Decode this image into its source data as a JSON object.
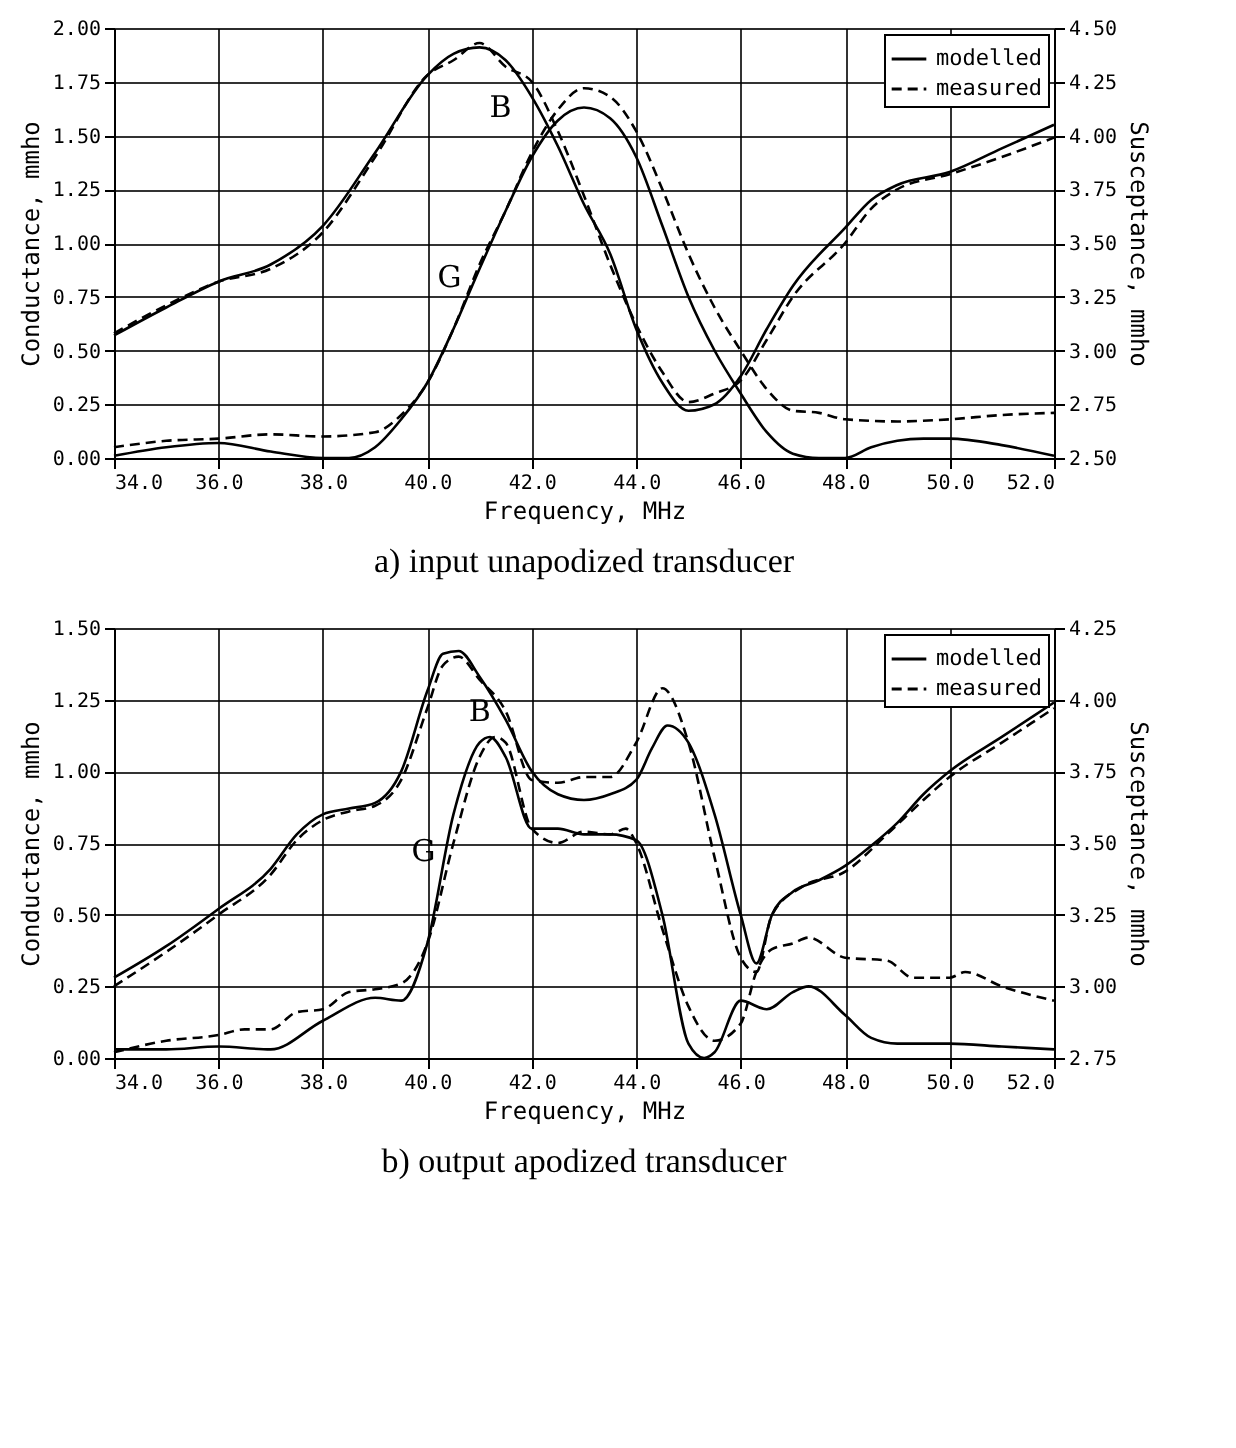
{
  "chart_data": [
    {
      "type": "line",
      "title": "a) input unapodized transducer",
      "xlabel": "Frequency, MHz",
      "ylabel": "Conductance, mmho",
      "y2label": "Susceptance, mmho",
      "xlim": [
        34,
        52
      ],
      "ylim": [
        0,
        2
      ],
      "y2lim": [
        2.5,
        4.5
      ],
      "xticks": [
        {
          "value": 34,
          "label": "34.0"
        },
        {
          "value": 36,
          "label": "36.0"
        },
        {
          "value": 38,
          "label": "38.0"
        },
        {
          "value": 40,
          "label": "40.0"
        },
        {
          "value": 42,
          "label": "42.0"
        },
        {
          "value": 44,
          "label": "44.0"
        },
        {
          "value": 46,
          "label": "46.0"
        },
        {
          "value": 48,
          "label": "48.0"
        },
        {
          "value": 50,
          "label": "50.0"
        },
        {
          "value": 52,
          "label": "52.0"
        }
      ],
      "yticks": [
        {
          "value": 0,
          "label": "0.00"
        },
        {
          "value": 0.25,
          "label": "0.25"
        },
        {
          "value": 0.5,
          "label": "0.50"
        },
        {
          "value": 0.75,
          "label": "0.75"
        },
        {
          "value": 1,
          "label": "1.00"
        },
        {
          "value": 1.25,
          "label": "1.25"
        },
        {
          "value": 1.5,
          "label": "1.50"
        },
        {
          "value": 1.75,
          "label": "1.75"
        },
        {
          "value": 2,
          "label": "2.00"
        }
      ],
      "y2ticks": [
        {
          "value": 2.5,
          "label": "2.50"
        },
        {
          "value": 2.75,
          "label": "2.75"
        },
        {
          "value": 3,
          "label": "3.00"
        },
        {
          "value": 3.25,
          "label": "3.25"
        },
        {
          "value": 3.5,
          "label": "3.50"
        },
        {
          "value": 3.75,
          "label": "3.75"
        },
        {
          "value": 4,
          "label": "4.00"
        },
        {
          "value": 4.25,
          "label": "4.25"
        },
        {
          "value": 4.5,
          "label": "4.50"
        }
      ],
      "grid": true,
      "legend": "top right",
      "marker": "none",
      "annotations": [
        "B",
        {
          "text": "G",
          "x": 41,
          "y": 0.88
        }
      ],
      "series": [
        {
          "name": "modelled",
          "color": "#000000",
          "line_style": "solid",
          "x": [
            34,
            35,
            36,
            37,
            38,
            38.5,
            39,
            39.5,
            40,
            40.5,
            41,
            41.5,
            42,
            42.5,
            43,
            43.5,
            44,
            44.5,
            45,
            45.5,
            46,
            46.5,
            47,
            47.5,
            48,
            48.5,
            49,
            49.5,
            50,
            51,
            52
          ],
          "values": [
            0.01,
            0.05,
            0.07,
            0.03,
            0.0,
            0.0,
            0.05,
            0.18,
            0.35,
            0.6,
            0.88,
            1.15,
            1.4,
            1.57,
            1.63,
            1.58,
            1.4,
            1.08,
            0.75,
            0.5,
            0.3,
            0.12,
            0.02,
            0.0,
            0.0,
            0.05,
            0.08,
            0.09,
            0.09,
            0.06,
            0.01
          ]
        },
        {
          "name": "measured",
          "color": "#000000",
          "line_style": "dashed",
          "x": [
            34,
            35,
            36,
            37,
            38,
            39,
            39.5,
            40,
            40.5,
            41,
            41.5,
            42,
            42.5,
            43,
            43.5,
            44,
            44.5,
            45,
            45.5,
            46,
            46.5,
            47,
            47.5,
            48,
            49,
            50,
            51,
            52
          ],
          "values": [
            0.05,
            0.08,
            0.09,
            0.11,
            0.1,
            0.12,
            0.2,
            0.35,
            0.6,
            0.9,
            1.15,
            1.42,
            1.62,
            1.72,
            1.68,
            1.52,
            1.25,
            0.95,
            0.7,
            0.5,
            0.32,
            0.22,
            0.21,
            0.18,
            0.17,
            0.18,
            0.2,
            0.21
          ]
        },
        {
          "color": "#000000",
          "line_style": "solid",
          "axis": "y2",
          "x": [
            34,
            35,
            36,
            37,
            38,
            39,
            40,
            40.5,
            41,
            41.5,
            42,
            42.5,
            43,
            43.5,
            44,
            44.5,
            45,
            45.5,
            46,
            46.5,
            47,
            48,
            48.5,
            49,
            50,
            51,
            52
          ],
          "values": [
            3.07,
            3.2,
            3.32,
            3.4,
            3.58,
            3.92,
            4.28,
            4.38,
            4.41,
            4.35,
            4.18,
            3.95,
            3.68,
            3.45,
            3.1,
            2.85,
            2.72,
            2.75,
            2.88,
            3.1,
            3.3,
            3.57,
            3.7,
            3.77,
            3.83,
            3.94,
            4.05
          ]
        },
        {
          "color": "#000000",
          "line_style": "dashed",
          "axis": "y2",
          "x": [
            34,
            35,
            36,
            37,
            38,
            39,
            40,
            40.5,
            41,
            41.5,
            42,
            42.5,
            43,
            43.5,
            44,
            44.5,
            45,
            45.5,
            46,
            46.5,
            47,
            48,
            48.5,
            49,
            50,
            51,
            52
          ],
          "values": [
            3.08,
            3.21,
            3.32,
            3.38,
            3.55,
            3.9,
            4.28,
            4.35,
            4.43,
            4.32,
            4.25,
            4.02,
            3.72,
            3.4,
            3.12,
            2.9,
            2.76,
            2.8,
            2.86,
            3.05,
            3.25,
            3.5,
            3.66,
            3.75,
            3.82,
            3.9,
            3.99
          ]
        }
      ]
    },
    {
      "type": "line",
      "title": "b) output apodized transducer",
      "xlabel": "Frequency, MHz",
      "ylabel": "Conductance, mmho",
      "y2label": "Susceptance, mmho",
      "xlim": [
        34,
        52
      ],
      "ylim": [
        0,
        1.5
      ],
      "y2lim": [
        2.75,
        4.25
      ],
      "xticks": [
        {
          "value": 34,
          "label": "34.0"
        },
        {
          "value": 36,
          "label": "36.0"
        },
        {
          "value": 38,
          "label": "38.0"
        },
        {
          "value": 40,
          "label": "40.0"
        },
        {
          "value": 42,
          "label": "42.0"
        },
        {
          "value": 44,
          "label": "44.0"
        },
        {
          "value": 46,
          "label": "46.0"
        },
        {
          "value": 48,
          "label": "48.0"
        },
        {
          "value": 50,
          "label": "50.0"
        },
        {
          "value": 52,
          "label": "52.0"
        }
      ],
      "yticks": [
        {
          "value": 0,
          "label": "0.00"
        },
        {
          "value": 0.25,
          "label": "0.25"
        },
        {
          "value": 0.5,
          "label": "0.50"
        },
        {
          "value": 0.75,
          "label": "0.75"
        },
        {
          "value": 1,
          "label": "1.00"
        },
        {
          "value": 1.25,
          "label": "1.25"
        },
        {
          "value": 1.5,
          "label": "1.50"
        }
      ],
      "y2ticks": [
        {
          "value": 2.75,
          "label": "2.75"
        },
        {
          "value": 3,
          "label": "3.00"
        },
        {
          "value": 3.25,
          "label": "3.25"
        },
        {
          "value": 3.5,
          "label": "3.50"
        },
        {
          "value": 3.75,
          "label": "3.75"
        },
        {
          "value": 4,
          "label": "4.00"
        },
        {
          "value": 4.25,
          "label": "4.25"
        }
      ],
      "grid": true,
      "legend": "top right",
      "marker": "none",
      "annotations": [
        "B",
        {
          "text": "G",
          "x": 40.5,
          "y": 0.75
        }
      ],
      "series": [
        {
          "name": "modelled",
          "color": "#000000",
          "line_style": "solid",
          "x": [
            34,
            35,
            36,
            37,
            38,
            39,
            39.5,
            40,
            40.5,
            41,
            41.2,
            41.5,
            42,
            42.5,
            43,
            43.5,
            44,
            44.5,
            45,
            45.3,
            45.5,
            46,
            46.5,
            47,
            47.3,
            48,
            48.5,
            49,
            50,
            51,
            52
          ],
          "values": [
            0.03,
            0.03,
            0.04,
            0.03,
            0.13,
            0.21,
            0.2,
            0.4,
            0.85,
            1.1,
            1.12,
            1.05,
            0.8,
            0.8,
            0.78,
            0.78,
            0.76,
            0.5,
            0.05,
            0.0,
            0.02,
            0.2,
            0.17,
            0.23,
            0.25,
            0.15,
            0.07,
            0.05,
            0.05,
            0.04,
            0.03
          ]
        },
        {
          "name": "measured",
          "color": "#000000",
          "line_style": "dashed",
          "x": [
            34,
            35,
            36,
            36.5,
            37,
            37.5,
            38,
            38.5,
            39,
            39.5,
            40,
            40.5,
            41,
            41.3,
            41.5,
            42,
            42.5,
            43,
            43.5,
            43.8,
            44,
            44.5,
            45,
            45.5,
            46,
            46.3,
            46.6,
            47,
            47.3,
            48,
            48.8,
            49.3,
            50,
            50.3,
            51,
            52
          ],
          "values": [
            0.02,
            0.06,
            0.08,
            0.1,
            0.1,
            0.16,
            0.17,
            0.23,
            0.24,
            0.26,
            0.4,
            0.75,
            1.05,
            1.12,
            1.1,
            0.8,
            0.75,
            0.79,
            0.78,
            0.8,
            0.75,
            0.45,
            0.18,
            0.06,
            0.12,
            0.3,
            0.38,
            0.4,
            0.42,
            0.35,
            0.34,
            0.28,
            0.28,
            0.3,
            0.25,
            0.2
          ]
        },
        {
          "color": "#000000",
          "line_style": "solid",
          "axis": "y2",
          "x": [
            34,
            35,
            36,
            37,
            37.5,
            38,
            38.5,
            39,
            39.5,
            40,
            40.3,
            40.6,
            41,
            41.5,
            42,
            42.5,
            43,
            43.5,
            44,
            44.3,
            44.6,
            45,
            45.5,
            46,
            46.3,
            46.6,
            47,
            47.5,
            48,
            48.5,
            49,
            49.5,
            50,
            51,
            52
          ],
          "values": [
            3.03,
            3.14,
            3.27,
            3.41,
            3.53,
            3.6,
            3.62,
            3.64,
            3.75,
            4.03,
            4.16,
            4.17,
            4.08,
            3.93,
            3.75,
            3.67,
            3.65,
            3.67,
            3.72,
            3.83,
            3.91,
            3.85,
            3.6,
            3.25,
            3.08,
            3.25,
            3.33,
            3.37,
            3.42,
            3.49,
            3.57,
            3.67,
            3.75,
            3.87,
            3.99
          ]
        },
        {
          "color": "#000000",
          "line_style": "dashed",
          "axis": "y2",
          "x": [
            34,
            35,
            36,
            37,
            37.5,
            38,
            38.5,
            39,
            39.5,
            40,
            40.3,
            40.6,
            41,
            41.5,
            42,
            42.5,
            43,
            43.5,
            44,
            44.5,
            45,
            45.5,
            46,
            46.3,
            46.6,
            47.2,
            48,
            48.8,
            49.5,
            50,
            51,
            52
          ],
          "values": [
            3.0,
            3.12,
            3.25,
            3.39,
            3.51,
            3.58,
            3.61,
            3.63,
            3.72,
            3.97,
            4.12,
            4.15,
            4.07,
            3.96,
            3.72,
            3.71,
            3.73,
            3.73,
            3.85,
            4.04,
            3.85,
            3.45,
            3.1,
            3.05,
            3.25,
            3.35,
            3.4,
            3.53,
            3.65,
            3.73,
            3.85,
            3.97
          ]
        }
      ]
    }
  ]
}
